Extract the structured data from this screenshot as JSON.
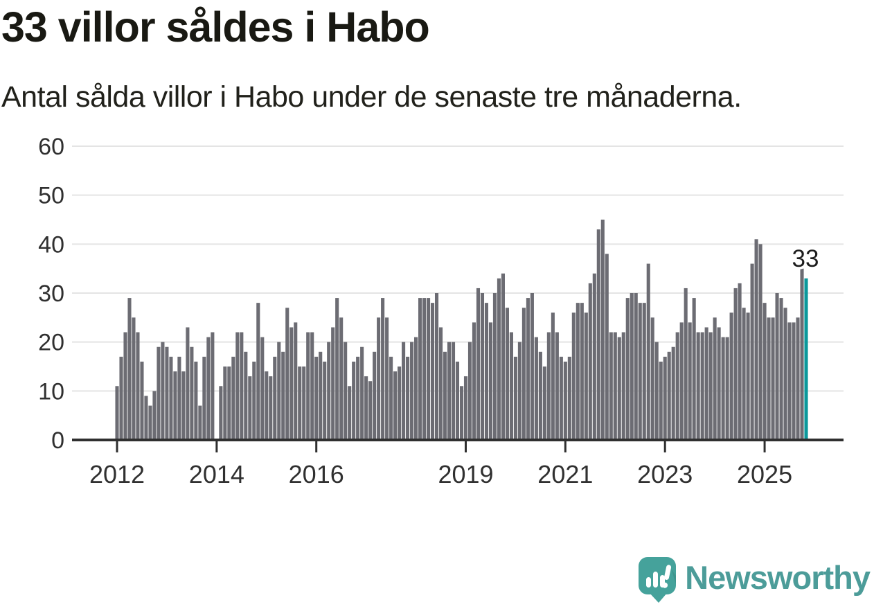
{
  "header": {
    "title": "33 villor såldes i Habo",
    "subtitle": "Antal sålda villor i Habo under de senaste tre månaderna."
  },
  "chart_data": {
    "type": "bar",
    "title": "33 villor såldes i Habo",
    "subtitle": "Antal sålda villor i Habo under de senaste tre månaderna.",
    "xlabel": "",
    "ylabel": "",
    "ylim": [
      0,
      60
    ],
    "grid": true,
    "y_ticks": [
      0,
      10,
      20,
      30,
      40,
      50,
      60
    ],
    "x_ticks": [
      {
        "label": "2012",
        "month": 0
      },
      {
        "label": "2014",
        "month": 24
      },
      {
        "label": "2016",
        "month": 48
      },
      {
        "label": "2019",
        "month": 84
      },
      {
        "label": "2021",
        "month": 108
      },
      {
        "label": "2023",
        "month": 132
      },
      {
        "label": "2025",
        "month": 156
      }
    ],
    "values": [
      11,
      17,
      22,
      29,
      25,
      22,
      16,
      9,
      7,
      10,
      19,
      20,
      19,
      17,
      14,
      17,
      14,
      23,
      19,
      16,
      7,
      17,
      21,
      22,
      0,
      11,
      15,
      15,
      17,
      22,
      22,
      18,
      13,
      16,
      28,
      21,
      14,
      13,
      17,
      20,
      18,
      27,
      23,
      24,
      15,
      15,
      22,
      22,
      17,
      18,
      16,
      20,
      23,
      29,
      25,
      20,
      11,
      16,
      17,
      19,
      13,
      12,
      18,
      25,
      29,
      25,
      17,
      14,
      15,
      20,
      17,
      20,
      21,
      29,
      29,
      29,
      28,
      30,
      23,
      18,
      20,
      20,
      16,
      11,
      13,
      20,
      24,
      31,
      30,
      28,
      24,
      30,
      33,
      34,
      27,
      22,
      17,
      20,
      27,
      29,
      30,
      21,
      18,
      15,
      22,
      26,
      22,
      17,
      16,
      17,
      26,
      28,
      28,
      26,
      32,
      34,
      43,
      45,
      38,
      22,
      22,
      21,
      22,
      29,
      30,
      30,
      28,
      28,
      36,
      25,
      20,
      16,
      17,
      18,
      19,
      22,
      24,
      31,
      24,
      29,
      22,
      22,
      23,
      22,
      25,
      23,
      21,
      21,
      26,
      31,
      32,
      27,
      26,
      36,
      41,
      40,
      28,
      25,
      25,
      30,
      29,
      27,
      24,
      24,
      25,
      35,
      33
    ],
    "highlight_index": 166,
    "highlight_value": 33,
    "annotation": {
      "text": "33"
    },
    "bar_color": "#6c6c73",
    "highlight_color": "#0b989b",
    "grid_color": "#e4e4e4",
    "axis_color": "#2f2f2f",
    "label_color": "#303030"
  },
  "footer": {
    "brand": "Newsworthy",
    "brand_color": "#4c9c99",
    "icon_color": "#45a29b"
  }
}
